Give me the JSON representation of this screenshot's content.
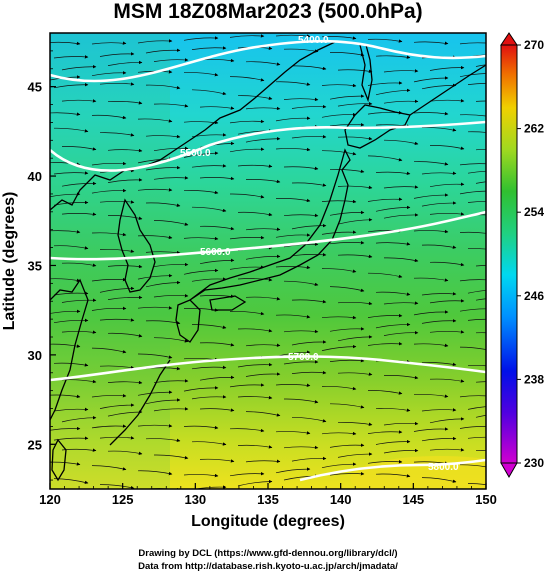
{
  "title": "MSM 18Z08Mar2023 (500.0hPa)",
  "xlabel": "Longitude (degrees)",
  "ylabel": "Latitude  (degrees)",
  "x_ticks": [
    "120",
    "125",
    "130",
    "135",
    "140",
    "145",
    "150"
  ],
  "y_ticks": [
    "25",
    "30",
    "35",
    "40",
    "45"
  ],
  "colorbar": {
    "ticks": [
      "230",
      "238",
      "246",
      "254",
      "262",
      "270"
    ],
    "min": 230,
    "max": 270
  },
  "contour_labels": [
    "5400.0",
    "5500.0",
    "5600.0",
    "5700.0",
    "5800.0"
  ],
  "credit_line1": "Drawing by DCL (https://www.gfd-dennou.org/library/dcl/)",
  "credit_line2": "Data from http://database.rish.kyoto-u.ac.jp/arch/jmadata/",
  "map": {
    "lon_range": [
      120,
      150
    ],
    "lat_range": [
      22.5,
      48
    ]
  }
}
